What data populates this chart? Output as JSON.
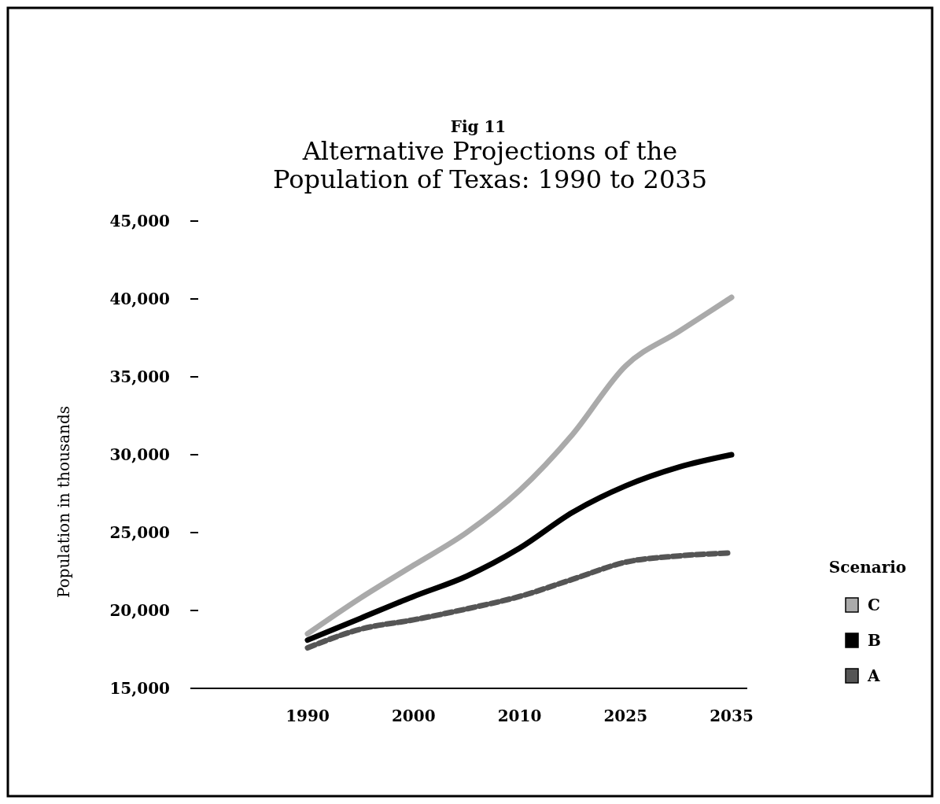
{
  "chart_data": {
    "type": "line",
    "subtitle": "Fig 11",
    "title": "Alternative Projections of the\nPopulation of Texas:  1990 to 2035",
    "ylabel": "Population in thousands",
    "legend_title": "Scenario",
    "legend": "right",
    "grid": false,
    "marker": "none",
    "categories": [
      "1990",
      null,
      "2000",
      null,
      "2010",
      null,
      "2025",
      null,
      "2035"
    ],
    "ylim": [
      15000,
      45000
    ],
    "yticks": [
      {
        "value": 15000,
        "label": "15,000"
      },
      {
        "value": 20000,
        "label": "20,000"
      },
      {
        "value": 25000,
        "label": "25,000"
      },
      {
        "value": 30000,
        "label": "30,000"
      },
      {
        "value": 35000,
        "label": "35,000"
      },
      {
        "value": 40000,
        "label": "40,000"
      },
      {
        "value": 45000,
        "label": "45,000"
      }
    ],
    "series": [
      {
        "name": "C",
        "color": "#aaaaaa",
        "values": [
          18500,
          20800,
          22900,
          25000,
          27700,
          31300,
          35700,
          37900,
          40100
        ]
      },
      {
        "name": "B",
        "color": "#000000",
        "values": [
          18100,
          19500,
          20900,
          22200,
          24000,
          26300,
          28000,
          29200,
          30000
        ]
      },
      {
        "name": "A",
        "color": "#555555",
        "line_style": "dashed",
        "values": [
          17600,
          18800,
          19400,
          20100,
          20900,
          22000,
          23100,
          23500,
          23700
        ]
      }
    ]
  }
}
